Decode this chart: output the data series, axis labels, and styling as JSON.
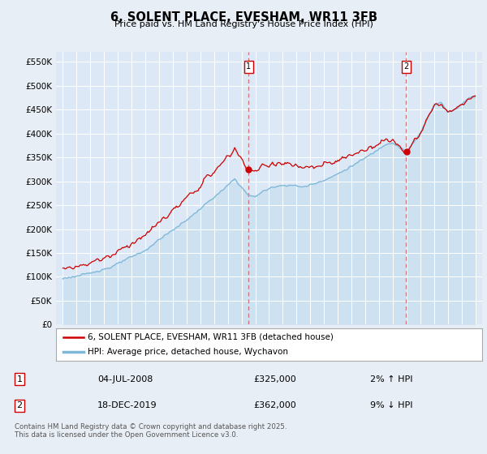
{
  "title": "6, SOLENT PLACE, EVESHAM, WR11 3FB",
  "subtitle": "Price paid vs. HM Land Registry's House Price Index (HPI)",
  "background_color": "#e8eef5",
  "plot_bg_color": "#dce8f5",
  "ylim": [
    0,
    570000
  ],
  "yticks": [
    0,
    50000,
    100000,
    150000,
    200000,
    250000,
    300000,
    350000,
    400000,
    450000,
    500000,
    550000
  ],
  "legend_entries": [
    "6, SOLENT PLACE, EVESHAM, WR11 3FB (detached house)",
    "HPI: Average price, detached house, Wychavon"
  ],
  "hpi_color": "#7eb8d8",
  "hpi_fill_color": "#c8dff0",
  "price_color": "#cc0000",
  "dashed_color": "#cc6666",
  "table_row1": [
    "1",
    "04-JUL-2008",
    "£325,000",
    "2% ↑ HPI"
  ],
  "table_row2": [
    "2",
    "18-DEC-2019",
    "£362,000",
    "9% ↓ HPI"
  ],
  "footnote": "Contains HM Land Registry data © Crown copyright and database right 2025.\nThis data is licensed under the Open Government Licence v3.0.",
  "sale1_year": 2008.5,
  "sale2_year": 2019.96,
  "sale1_price": 325000,
  "sale2_price": 362000
}
